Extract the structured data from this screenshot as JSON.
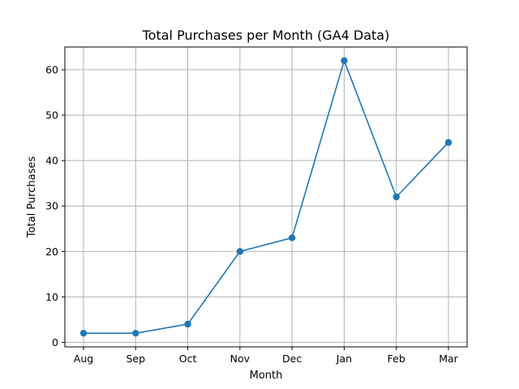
{
  "chart_data": {
    "type": "line",
    "title": "Total Purchases per Month (GA4 Data)",
    "xlabel": "Month",
    "ylabel": "Total Purchases",
    "categories": [
      "Aug",
      "Sep",
      "Oct",
      "Nov",
      "Dec",
      "Jan",
      "Feb",
      "Mar"
    ],
    "series": [
      {
        "values": [
          2,
          2,
          4,
          20,
          23,
          62,
          32,
          44
        ]
      }
    ],
    "ylim": [
      -1.0,
      65.0
    ],
    "yticks": [
      0,
      10,
      20,
      30,
      40,
      50,
      60
    ],
    "grid": true,
    "marker": "circle",
    "line_color": "#1f77b4"
  }
}
